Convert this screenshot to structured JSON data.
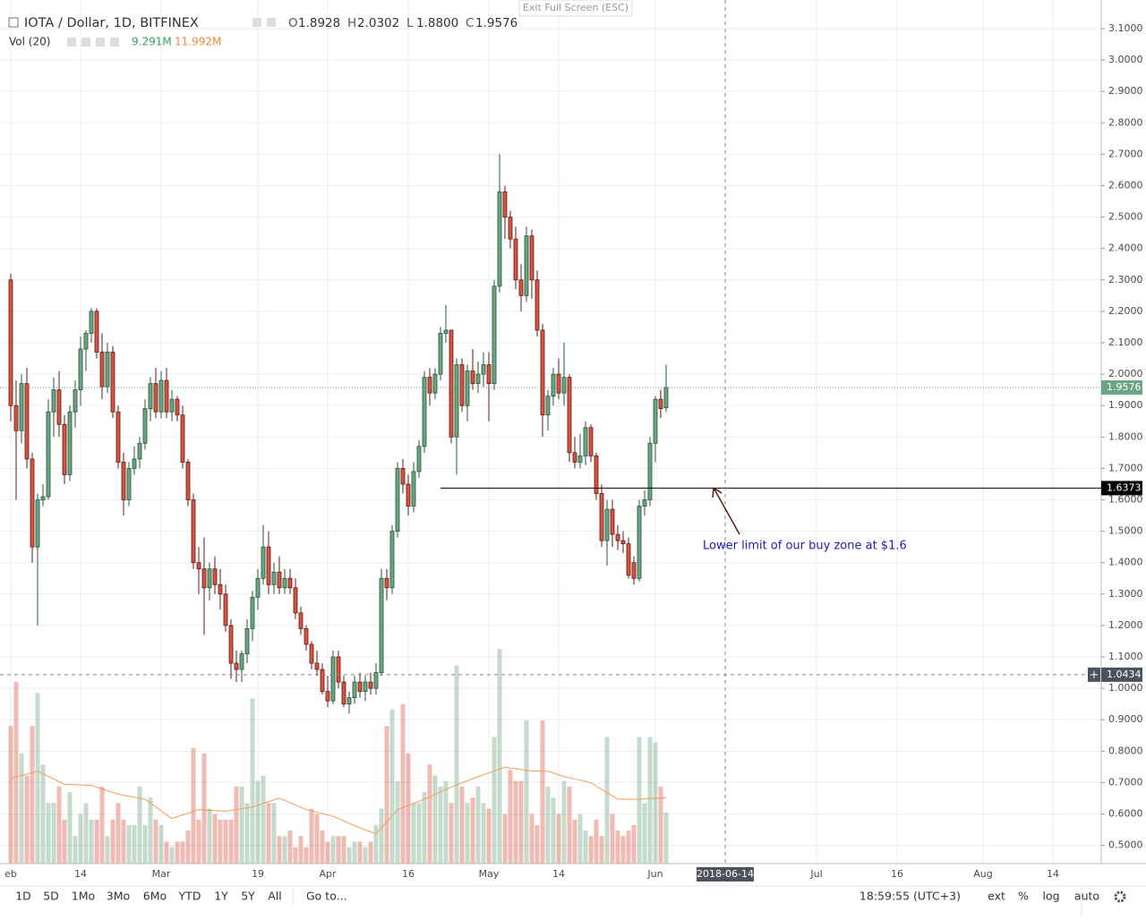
{
  "header": {
    "symbol": "IOTA / Dollar, 1D, BITFINEX",
    "ohlc": [
      {
        "label": "O",
        "value": "1.8928"
      },
      {
        "label": "H",
        "value": "2.0302"
      },
      {
        "label": "L",
        "value": "1.8800"
      },
      {
        "label": "C",
        "value": "1.9576"
      }
    ],
    "volume_study": "Vol (20)",
    "volume_value": "9.291M",
    "volume_ma_value": "11.992M",
    "exit_fullscreen": "Exit Full Screen (ESC)"
  },
  "toolbar": {
    "ranges": [
      "1D",
      "5D",
      "1Mo",
      "3Mo",
      "6Mo",
      "YTD",
      "1Y",
      "5Y",
      "All"
    ],
    "goto": "Go to...",
    "clock": "18:59:55 (UTC+3)",
    "options": [
      "ext",
      "%",
      "log",
      "auto"
    ]
  },
  "chart_data": {
    "type": "candlestick",
    "x": [
      "2018-02-01",
      "2018-02-02",
      "2018-02-03",
      "2018-02-04",
      "2018-02-05",
      "2018-02-06",
      "2018-02-07",
      "2018-02-08",
      "2018-02-09",
      "2018-02-10",
      "2018-02-11",
      "2018-02-12",
      "2018-02-13",
      "2018-02-14",
      "2018-02-15",
      "2018-02-16",
      "2018-02-17",
      "2018-02-18",
      "2018-02-19",
      "2018-02-20",
      "2018-02-21",
      "2018-02-22",
      "2018-02-23",
      "2018-02-24",
      "2018-02-25",
      "2018-02-26",
      "2018-02-27",
      "2018-02-28",
      "2018-03-01",
      "2018-03-02",
      "2018-03-03",
      "2018-03-04",
      "2018-03-05",
      "2018-03-06",
      "2018-03-07",
      "2018-03-08",
      "2018-03-09",
      "2018-03-10",
      "2018-03-11",
      "2018-03-12",
      "2018-03-13",
      "2018-03-14",
      "2018-03-15",
      "2018-03-16",
      "2018-03-17",
      "2018-03-18",
      "2018-03-19",
      "2018-03-20",
      "2018-03-21",
      "2018-03-22",
      "2018-03-23",
      "2018-03-24",
      "2018-03-25",
      "2018-03-26",
      "2018-03-27",
      "2018-03-28",
      "2018-03-29",
      "2018-03-30",
      "2018-03-31",
      "2018-04-01",
      "2018-04-02",
      "2018-04-03",
      "2018-04-04",
      "2018-04-05",
      "2018-04-06",
      "2018-04-07",
      "2018-04-08",
      "2018-04-09",
      "2018-04-10",
      "2018-04-11",
      "2018-04-12",
      "2018-04-13",
      "2018-04-14",
      "2018-04-15",
      "2018-04-16",
      "2018-04-17",
      "2018-04-18",
      "2018-04-19",
      "2018-04-20",
      "2018-04-21",
      "2018-04-22",
      "2018-04-23",
      "2018-04-24",
      "2018-04-25",
      "2018-04-26",
      "2018-04-27",
      "2018-04-28",
      "2018-04-29",
      "2018-04-30",
      "2018-05-01",
      "2018-05-02",
      "2018-05-03",
      "2018-05-04",
      "2018-05-05",
      "2018-05-06",
      "2018-05-07",
      "2018-05-08",
      "2018-05-09",
      "2018-05-10",
      "2018-05-11",
      "2018-05-12",
      "2018-05-13",
      "2018-05-14",
      "2018-05-15",
      "2018-05-16",
      "2018-05-17",
      "2018-05-18",
      "2018-05-19",
      "2018-05-20",
      "2018-05-21",
      "2018-05-22",
      "2018-05-23",
      "2018-05-24",
      "2018-05-25",
      "2018-05-26",
      "2018-05-27",
      "2018-05-28",
      "2018-05-29",
      "2018-05-30",
      "2018-05-31",
      "2018-06-01",
      "2018-06-02",
      "2018-06-03"
    ],
    "open": [
      2.3,
      1.9,
      1.82,
      1.97,
      1.73,
      1.45,
      1.6,
      1.61,
      1.88,
      1.95,
      1.84,
      1.68,
      1.88,
      1.95,
      2.08,
      2.13,
      2.2,
      2.07,
      1.96,
      2.07,
      1.88,
      1.72,
      1.6,
      1.7,
      1.73,
      1.78,
      1.89,
      1.97,
      1.88,
      1.98,
      1.88,
      1.92,
      1.87,
      1.72,
      1.6,
      1.4,
      1.38,
      1.32,
      1.38,
      1.33,
      1.3,
      1.2,
      1.08,
      1.06,
      1.11,
      1.19,
      1.29,
      1.35,
      1.45,
      1.33,
      1.37,
      1.32,
      1.35,
      1.32,
      1.24,
      1.19,
      1.14,
      1.08,
      1.06,
      0.99,
      0.96,
      1.1,
      1.02,
      0.95,
      0.97,
      1.02,
      0.99,
      1.02,
      1.0,
      1.05,
      1.35,
      1.32,
      1.5,
      1.7,
      1.65,
      1.58,
      1.69,
      1.77,
      1.99,
      1.94,
      2.0,
      2.13,
      2.14,
      1.8,
      2.03,
      1.9,
      2.01,
      1.97,
      2.0,
      2.03,
      1.97,
      2.28,
      2.58,
      2.5,
      2.43,
      2.3,
      2.25,
      2.44,
      2.3,
      2.14,
      1.87,
      1.93,
      2.0,
      1.94,
      1.99,
      1.75,
      1.72,
      1.74,
      1.83,
      1.74,
      1.62,
      1.47,
      1.57,
      1.49,
      1.47,
      1.46,
      1.4,
      1.35,
      1.58,
      1.6,
      1.78,
      1.92,
      1.8928
    ],
    "high": [
      2.32,
      1.98,
      2.0,
      2.02,
      1.75,
      1.62,
      1.65,
      1.92,
      1.99,
      2.01,
      1.87,
      1.9,
      1.98,
      2.12,
      2.14,
      2.21,
      2.21,
      2.13,
      2.1,
      2.09,
      1.9,
      1.75,
      1.72,
      1.77,
      1.8,
      1.92,
      1.99,
      2.02,
      2.01,
      2.02,
      1.95,
      1.93,
      1.9,
      1.73,
      1.62,
      1.45,
      1.48,
      1.4,
      1.42,
      1.38,
      1.33,
      1.22,
      1.12,
      1.12,
      1.22,
      1.31,
      1.38,
      1.52,
      1.5,
      1.4,
      1.42,
      1.38,
      1.38,
      1.35,
      1.26,
      1.2,
      1.15,
      1.12,
      1.08,
      1.04,
      1.12,
      1.12,
      1.04,
      0.99,
      1.04,
      1.05,
      1.04,
      1.05,
      1.08,
      1.38,
      1.38,
      1.52,
      1.72,
      1.73,
      1.68,
      1.72,
      1.79,
      2.01,
      2.02,
      2.02,
      2.15,
      2.22,
      2.14,
      2.05,
      2.05,
      2.03,
      2.08,
      2.04,
      2.07,
      2.07,
      2.3,
      2.7,
      2.6,
      2.52,
      2.47,
      2.35,
      2.47,
      2.46,
      2.33,
      2.16,
      1.95,
      2.02,
      2.05,
      2.1,
      2.0,
      1.8,
      1.81,
      1.85,
      1.84,
      1.75,
      1.65,
      1.6,
      1.6,
      1.52,
      1.5,
      1.48,
      1.42,
      1.6,
      1.63,
      1.8,
      1.93,
      1.95,
      2.0302
    ],
    "low": [
      1.85,
      1.6,
      1.78,
      1.7,
      1.4,
      1.2,
      1.58,
      1.6,
      1.8,
      1.8,
      1.65,
      1.66,
      1.83,
      1.9,
      2.01,
      2.1,
      2.05,
      1.92,
      1.94,
      1.86,
      1.7,
      1.55,
      1.58,
      1.68,
      1.7,
      1.76,
      1.85,
      1.86,
      1.86,
      1.86,
      1.85,
      1.85,
      1.7,
      1.58,
      1.38,
      1.3,
      1.17,
      1.28,
      1.3,
      1.25,
      1.18,
      1.03,
      1.02,
      1.02,
      1.08,
      1.15,
      1.25,
      1.33,
      1.3,
      1.3,
      1.3,
      1.3,
      1.3,
      1.22,
      1.17,
      1.12,
      1.06,
      1.04,
      0.98,
      0.94,
      0.95,
      1.0,
      0.94,
      0.92,
      0.95,
      0.97,
      0.96,
      0.98,
      0.98,
      1.04,
      1.28,
      1.3,
      1.48,
      1.62,
      1.55,
      1.56,
      1.67,
      1.75,
      1.9,
      1.92,
      1.98,
      2.1,
      1.78,
      1.68,
      1.88,
      1.85,
      1.95,
      1.94,
      1.96,
      1.85,
      1.95,
      2.26,
      2.43,
      2.4,
      2.27,
      2.2,
      2.23,
      2.24,
      2.12,
      1.8,
      1.82,
      1.9,
      1.92,
      1.9,
      1.72,
      1.7,
      1.7,
      1.71,
      1.72,
      1.6,
      1.45,
      1.39,
      1.45,
      1.44,
      1.43,
      1.35,
      1.33,
      1.34,
      1.55,
      1.58,
      1.72,
      1.86,
      1.88
    ],
    "close": [
      1.9,
      1.82,
      1.97,
      1.73,
      1.45,
      1.6,
      1.61,
      1.88,
      1.95,
      1.84,
      1.68,
      1.88,
      1.95,
      2.08,
      2.13,
      2.2,
      2.07,
      1.96,
      2.07,
      1.88,
      1.72,
      1.6,
      1.7,
      1.73,
      1.78,
      1.89,
      1.97,
      1.88,
      1.98,
      1.88,
      1.92,
      1.87,
      1.72,
      1.6,
      1.4,
      1.38,
      1.32,
      1.38,
      1.33,
      1.3,
      1.2,
      1.08,
      1.06,
      1.11,
      1.19,
      1.29,
      1.35,
      1.45,
      1.33,
      1.37,
      1.32,
      1.35,
      1.32,
      1.24,
      1.19,
      1.14,
      1.08,
      1.06,
      0.99,
      0.96,
      1.1,
      1.02,
      0.95,
      0.97,
      1.02,
      0.99,
      1.02,
      1.0,
      1.05,
      1.35,
      1.32,
      1.5,
      1.7,
      1.65,
      1.58,
      1.69,
      1.77,
      1.99,
      1.94,
      2.0,
      2.13,
      2.14,
      1.8,
      2.03,
      1.9,
      2.01,
      1.97,
      2.0,
      2.03,
      1.97,
      2.28,
      2.58,
      2.5,
      2.43,
      2.3,
      2.25,
      2.44,
      2.3,
      2.14,
      1.87,
      1.93,
      2.0,
      1.94,
      1.99,
      1.75,
      1.72,
      1.74,
      1.83,
      1.74,
      1.62,
      1.47,
      1.57,
      1.49,
      1.47,
      1.46,
      1.36,
      1.35,
      1.58,
      1.6,
      1.78,
      1.92,
      1.89,
      1.9576
    ],
    "volume": [
      25,
      33,
      20,
      16,
      25,
      31,
      18,
      11,
      11,
      14,
      8,
      13,
      5,
      9,
      11,
      8,
      8,
      14,
      5,
      8,
      11,
      8,
      7,
      7,
      14,
      7,
      12,
      8,
      7,
      4,
      3,
      4,
      4,
      6,
      21,
      8,
      20,
      10,
      9,
      8,
      8,
      8,
      14,
      14,
      11,
      30,
      15,
      16,
      11,
      11,
      5,
      5,
      6,
      3,
      5,
      3,
      10,
      9,
      6,
      4,
      5,
      5,
      5,
      3,
      4,
      4,
      3,
      4,
      7,
      10,
      25,
      28,
      15,
      29,
      20,
      11,
      11,
      13,
      18,
      16,
      14,
      15,
      11,
      36,
      14,
      11,
      12,
      14,
      11,
      10,
      23,
      39,
      9,
      17,
      15,
      15,
      26,
      9,
      7,
      26,
      14,
      12,
      9,
      15,
      14,
      8,
      9,
      6,
      5,
      8,
      5,
      23,
      9,
      6,
      5,
      6,
      7,
      23,
      11,
      23,
      22,
      14,
      9.291
    ],
    "volume_ma": {
      "x": [
        "2018-02-01",
        "2018-02-06",
        "2018-02-11",
        "2018-02-16",
        "2018-02-21",
        "2018-02-26",
        "2018-03-03",
        "2018-03-08",
        "2018-03-13",
        "2018-03-18",
        "2018-03-23",
        "2018-03-28",
        "2018-04-02",
        "2018-04-07",
        "2018-04-10",
        "2018-04-14",
        "2018-04-19",
        "2018-04-24",
        "2018-04-29",
        "2018-05-04",
        "2018-05-09",
        "2018-05-12",
        "2018-05-15",
        "2018-05-20",
        "2018-05-25",
        "2018-05-29",
        "2018-06-03"
      ],
      "values": [
        15.5,
        16.8,
        14.4,
        14.2,
        12.6,
        11.7,
        8.2,
        9.8,
        9.5,
        10.3,
        11.9,
        9.8,
        8.6,
        6.5,
        5.4,
        9.8,
        11.7,
        13.9,
        15.8,
        17.5,
        16.8,
        16.8,
        15.8,
        14.7,
        11.7,
        11.7,
        11.992
      ]
    },
    "up_color": "#6ba583",
    "down_color": "#d75442",
    "volume_ma_color": "#f39c5a",
    "xlim": [
      "2018-01-30",
      "2018-08-23"
    ],
    "xticks": [
      {
        "value": "2018-02-01",
        "label": "eb"
      },
      {
        "value": "2018-02-14",
        "label": "14"
      },
      {
        "value": "2018-03-01",
        "label": "Mar"
      },
      {
        "value": "2018-03-19",
        "label": "19"
      },
      {
        "value": "2018-04-01",
        "label": "Apr"
      },
      {
        "value": "2018-04-16",
        "label": "16"
      },
      {
        "value": "2018-05-01",
        "label": "May"
      },
      {
        "value": "2018-05-14",
        "label": "14"
      },
      {
        "value": "2018-06-01",
        "label": "Jun"
      },
      {
        "value": "2018-07-01",
        "label": "Jul"
      },
      {
        "value": "2018-07-16",
        "label": "16"
      },
      {
        "value": "2018-08-01",
        "label": "Aug"
      },
      {
        "value": "2018-08-14",
        "label": "14"
      }
    ],
    "ylim": [
      0.442,
      3.191
    ],
    "yticks": [
      {
        "value": 0.5,
        "label": "0.5000"
      },
      {
        "value": 0.6,
        "label": "0.6000"
      },
      {
        "value": 0.7,
        "label": "0.7000"
      },
      {
        "value": 0.8,
        "label": "0.8000"
      },
      {
        "value": 0.9,
        "label": "0.9000"
      },
      {
        "value": 1.0,
        "label": "1.0000"
      },
      {
        "value": 1.1,
        "label": "1.1000"
      },
      {
        "value": 1.2,
        "label": "1.2000"
      },
      {
        "value": 1.3,
        "label": "1.3000"
      },
      {
        "value": 1.4,
        "label": "1.4000"
      },
      {
        "value": 1.5,
        "label": "1.5000"
      },
      {
        "value": 1.6,
        "label": "1.6000"
      },
      {
        "value": 1.7,
        "label": "1.7000"
      },
      {
        "value": 1.8,
        "label": "1.8000"
      },
      {
        "value": 1.9,
        "label": "1.9000"
      },
      {
        "value": 2.0,
        "label": "2.0000"
      },
      {
        "value": 2.1,
        "label": "2.1000"
      },
      {
        "value": 2.2,
        "label": "2.2000"
      },
      {
        "value": 2.3,
        "label": "2.3000"
      },
      {
        "value": 2.4,
        "label": "2.4000"
      },
      {
        "value": 2.5,
        "label": "2.5000"
      },
      {
        "value": 2.6,
        "label": "2.6000"
      },
      {
        "value": 2.7,
        "label": "2.7000"
      },
      {
        "value": 2.8,
        "label": "2.8000"
      },
      {
        "value": 2.9,
        "label": "2.9000"
      },
      {
        "value": 3.0,
        "label": "3.0000"
      },
      {
        "value": 3.1,
        "label": "3.1000"
      }
    ],
    "grid": true,
    "level": {
      "value": 1.6373,
      "from": "2018-04-22"
    },
    "crosshair": {
      "x": "2018-06-14",
      "y": 1.0434
    },
    "annotation": "Lower limit of our buy zone at $1.6"
  }
}
